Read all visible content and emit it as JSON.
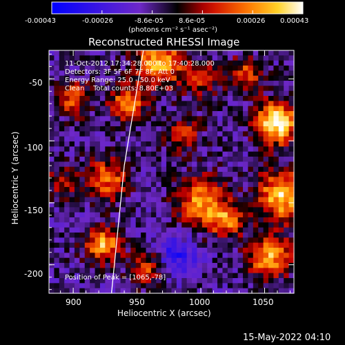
{
  "chart_data": {
    "type": "heatmap",
    "title": "Reconstructed RHESSI Image",
    "xlabel": "Heliocentric X (arcsec)",
    "ylabel": "Heliocentric Y (arcsec)",
    "xlim": [
      881,
      1073
    ],
    "ylim": [
      -223,
      -27
    ],
    "x_ticks": [
      "900",
      "950",
      "1000",
      "1050"
    ],
    "y_ticks": [
      "-50",
      "-100",
      "-150",
      "-200"
    ],
    "colorbar": {
      "ticks": [
        "-0.00043",
        "-0.00026",
        "-8.6e-05",
        "8.6e-05",
        "0.00026",
        "0.00043"
      ],
      "unit_label": "(photons cm⁻² s⁻¹ asec⁻²)",
      "range": [
        -0.00043,
        0.00043
      ]
    },
    "annotations": [
      "11-Oct-2012 17:34:28.000 to 17:40:28.000",
      "Detectors: 3F 5F 6F 7F 8F, Att 0",
      "Energy Range: 25.0 - 50.0 keV",
      "Clean    Total counts: 8.80E+03"
    ],
    "peak_label": "Position of Peak = [1065,-78]",
    "limb_curve": [
      [
        955,
        -27
      ],
      [
        940,
        -120
      ],
      [
        930,
        -223
      ]
    ]
  },
  "footer": {
    "timestamp": "15-May-2022 04:10"
  }
}
